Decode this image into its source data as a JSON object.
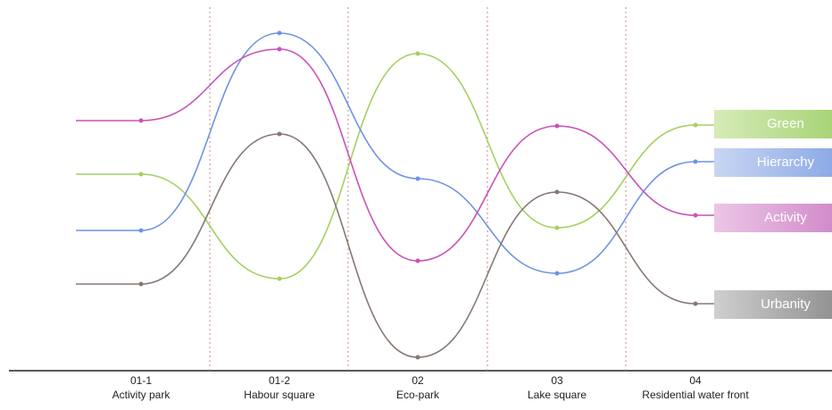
{
  "zones": [
    {
      "code": "01-1",
      "name": "Activity park"
    },
    {
      "code": "01-2",
      "name": "Habour square"
    },
    {
      "code": "02",
      "name": "Eco-park"
    },
    {
      "code": "03",
      "name": "Lake square"
    },
    {
      "code": "04",
      "name": "Residential water front"
    }
  ],
  "series": [
    {
      "label": "Green"
    },
    {
      "label": "Hierarchy"
    },
    {
      "label": "Activity"
    },
    {
      "label": "Urbanity"
    }
  ]
}
